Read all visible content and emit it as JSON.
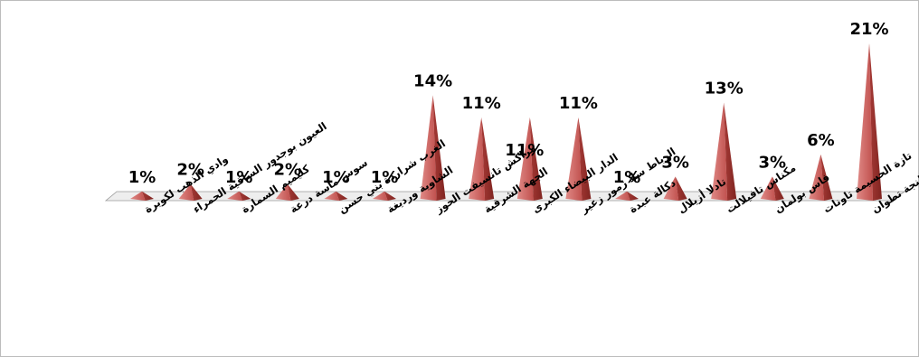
{
  "chart_data": {
    "type": "bar",
    "shape": "cone-3d",
    "title": "",
    "xlabel": "",
    "ylabel": "",
    "ylim": [
      0,
      21
    ],
    "grid": false,
    "legend": "none",
    "bar_color": "#c0504d",
    "bar_shadow_color": "#7f2420",
    "floor_color": "#eeeeee",
    "categories": [
      "وادي الذهب لكويرة",
      "العيون بوجدور الساقية الحمراء",
      "كليميم السمارة",
      "سوس ماسة درعة",
      "الغرب شراردة بني حسن",
      "الشاوية ورديغة",
      "مراكش تانسيفت الحوز",
      "الجهة الشرقية",
      "الدار البيضاء الكبرى",
      "الرباط سلا زمور زعير",
      "دكالة عبدة",
      "تادلا أزيلال",
      "مكناس تافيلالت",
      "فاس بولمان",
      "تازة الحسيمة تاونات",
      "طنجة تطوان"
    ],
    "values": [
      1,
      2,
      1,
      2,
      1,
      1,
      14,
      11,
      11,
      11,
      1,
      3,
      13,
      3,
      6,
      21
    ],
    "data_labels": [
      "1%",
      "2%",
      "1%",
      "2%",
      "1%",
      "1%",
      "14%",
      "11%",
      "11%",
      "11%",
      "1%",
      "3%",
      "13%",
      "3%",
      "6%",
      "21%"
    ]
  }
}
